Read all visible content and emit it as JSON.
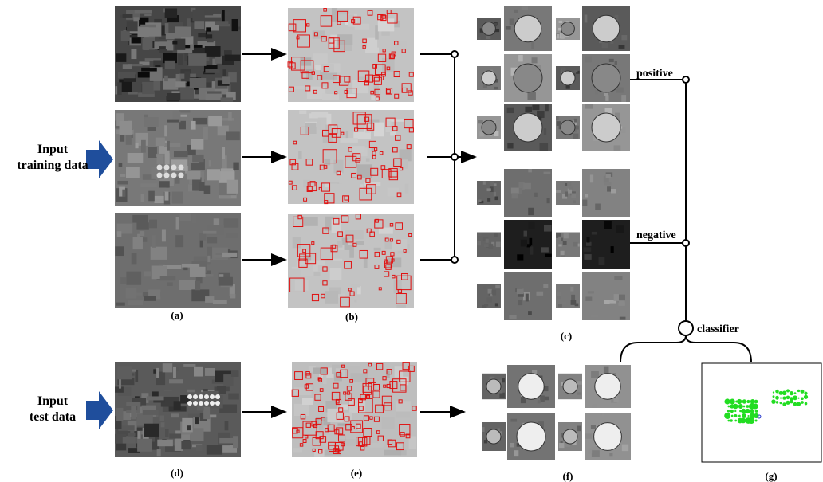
{
  "training_input": {
    "line1": "Input",
    "line2": "training data"
  },
  "test_input": {
    "line1": "Input",
    "line2": "test data"
  },
  "panel_labels": {
    "a": "(a)",
    "b": "(b)",
    "c": "(c)",
    "d": "(d)",
    "e": "(e)",
    "f": "(f)",
    "g": "(g)"
  },
  "positive": "positive",
  "negative": "negative",
  "classifier": "classifier"
}
